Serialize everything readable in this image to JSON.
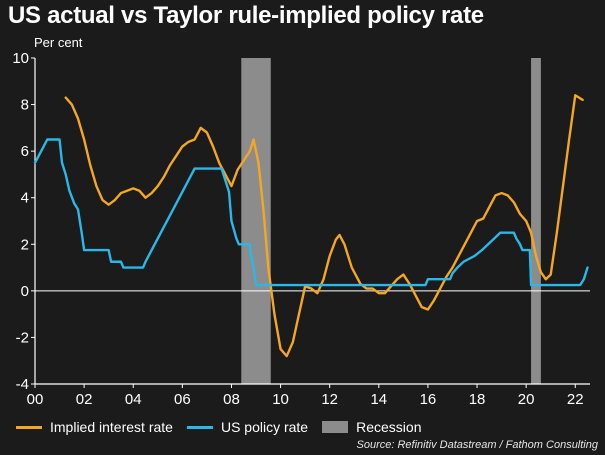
{
  "chart_data": {
    "type": "line",
    "title": "US actual vs Taylor rule-implied policy rate",
    "ylabel": "Per cent",
    "xlabel": "",
    "xlim": [
      2000,
      2022.6
    ],
    "ylim": [
      -4,
      10
    ],
    "y_ticks": [
      10,
      8,
      6,
      4,
      2,
      0,
      -2,
      -4
    ],
    "y_tick_labels": [
      "10",
      "8",
      "6",
      "4",
      "2",
      "0",
      "-2",
      "-4"
    ],
    "x_ticks": [
      2000,
      2002,
      2004,
      2006,
      2008,
      2010,
      2012,
      2014,
      2016,
      2018,
      2020,
      2022
    ],
    "x_tick_labels": [
      "00",
      "02",
      "04",
      "06",
      "08",
      "10",
      "12",
      "14",
      "16",
      "18",
      "20",
      "22"
    ],
    "grid": false,
    "zero_line": true,
    "legend_position": "bottom",
    "recessions": [
      {
        "start": 2008.4,
        "end": 2009.6
      },
      {
        "start": 2020.2,
        "end": 2020.6
      }
    ],
    "recession_label": "Recession",
    "recession_color": "#8c8c8c",
    "series": [
      {
        "name": "Implied interest rate",
        "color": "#f5a623",
        "points": [
          [
            2001.25,
            8.3
          ],
          [
            2001.5,
            8.0
          ],
          [
            2001.75,
            7.4
          ],
          [
            2002.0,
            6.5
          ],
          [
            2002.25,
            5.4
          ],
          [
            2002.5,
            4.5
          ],
          [
            2002.75,
            3.9
          ],
          [
            2003.0,
            3.7
          ],
          [
            2003.25,
            3.9
          ],
          [
            2003.5,
            4.2
          ],
          [
            2003.75,
            4.3
          ],
          [
            2004.0,
            4.4
          ],
          [
            2004.25,
            4.3
          ],
          [
            2004.5,
            4.0
          ],
          [
            2004.75,
            4.2
          ],
          [
            2005.0,
            4.5
          ],
          [
            2005.25,
            4.9
          ],
          [
            2005.5,
            5.4
          ],
          [
            2005.75,
            5.8
          ],
          [
            2006.0,
            6.2
          ],
          [
            2006.25,
            6.4
          ],
          [
            2006.5,
            6.5
          ],
          [
            2006.75,
            7.0
          ],
          [
            2007.0,
            6.8
          ],
          [
            2007.25,
            6.2
          ],
          [
            2007.5,
            5.5
          ],
          [
            2007.75,
            5.0
          ],
          [
            2008.0,
            4.5
          ],
          [
            2008.25,
            5.2
          ],
          [
            2008.5,
            5.6
          ],
          [
            2008.75,
            6.0
          ],
          [
            2008.9,
            6.5
          ],
          [
            2009.1,
            5.5
          ],
          [
            2009.3,
            3.5
          ],
          [
            2009.5,
            1.0
          ],
          [
            2009.75,
            -1.0
          ],
          [
            2010.0,
            -2.5
          ],
          [
            2010.25,
            -2.8
          ],
          [
            2010.5,
            -2.2
          ],
          [
            2010.75,
            -1.0
          ],
          [
            2011.0,
            0.2
          ],
          [
            2011.25,
            0.1
          ],
          [
            2011.5,
            -0.1
          ],
          [
            2011.75,
            0.5
          ],
          [
            2012.0,
            1.5
          ],
          [
            2012.25,
            2.2
          ],
          [
            2012.4,
            2.4
          ],
          [
            2012.6,
            2.0
          ],
          [
            2012.9,
            1.0
          ],
          [
            2013.25,
            0.3
          ],
          [
            2013.5,
            0.1
          ],
          [
            2013.75,
            0.1
          ],
          [
            2014.0,
            -0.1
          ],
          [
            2014.25,
            -0.1
          ],
          [
            2014.5,
            0.2
          ],
          [
            2014.75,
            0.5
          ],
          [
            2015.0,
            0.7
          ],
          [
            2015.25,
            0.3
          ],
          [
            2015.5,
            -0.2
          ],
          [
            2015.75,
            -0.7
          ],
          [
            2016.0,
            -0.8
          ],
          [
            2016.25,
            -0.4
          ],
          [
            2016.5,
            0.1
          ],
          [
            2016.75,
            0.6
          ],
          [
            2017.0,
            1.0
          ],
          [
            2017.25,
            1.5
          ],
          [
            2017.5,
            2.0
          ],
          [
            2017.75,
            2.5
          ],
          [
            2018.0,
            3.0
          ],
          [
            2018.25,
            3.1
          ],
          [
            2018.5,
            3.6
          ],
          [
            2018.75,
            4.1
          ],
          [
            2019.0,
            4.2
          ],
          [
            2019.25,
            4.1
          ],
          [
            2019.5,
            3.8
          ],
          [
            2019.75,
            3.3
          ],
          [
            2020.0,
            3.0
          ],
          [
            2020.2,
            2.5
          ],
          [
            2020.4,
            1.5
          ],
          [
            2020.6,
            0.8
          ],
          [
            2020.8,
            0.5
          ],
          [
            2021.0,
            0.7
          ],
          [
            2021.25,
            2.5
          ],
          [
            2021.5,
            4.5
          ],
          [
            2021.75,
            6.5
          ],
          [
            2022.0,
            8.4
          ],
          [
            2022.3,
            8.2
          ]
        ]
      },
      {
        "name": "US policy rate",
        "color": "#2ab7ea",
        "points": [
          [
            2000.0,
            5.5
          ],
          [
            2000.25,
            6.0
          ],
          [
            2000.5,
            6.5
          ],
          [
            2000.75,
            6.5
          ],
          [
            2001.0,
            6.5
          ],
          [
            2001.1,
            5.5
          ],
          [
            2001.25,
            5.0
          ],
          [
            2001.4,
            4.3
          ],
          [
            2001.6,
            3.75
          ],
          [
            2001.75,
            3.5
          ],
          [
            2001.9,
            2.5
          ],
          [
            2002.0,
            1.75
          ],
          [
            2002.75,
            1.75
          ],
          [
            2003.0,
            1.75
          ],
          [
            2003.1,
            1.25
          ],
          [
            2003.5,
            1.25
          ],
          [
            2003.6,
            1.0
          ],
          [
            2004.4,
            1.0
          ],
          [
            2004.5,
            1.25
          ],
          [
            2004.75,
            1.75
          ],
          [
            2005.0,
            2.25
          ],
          [
            2005.25,
            2.75
          ],
          [
            2005.5,
            3.25
          ],
          [
            2005.75,
            3.75
          ],
          [
            2006.0,
            4.25
          ],
          [
            2006.25,
            4.75
          ],
          [
            2006.5,
            5.25
          ],
          [
            2007.6,
            5.25
          ],
          [
            2007.75,
            4.75
          ],
          [
            2007.9,
            4.25
          ],
          [
            2008.0,
            3.0
          ],
          [
            2008.2,
            2.25
          ],
          [
            2008.3,
            2.0
          ],
          [
            2008.75,
            2.0
          ],
          [
            2008.8,
            1.5
          ],
          [
            2008.9,
            1.0
          ],
          [
            2009.0,
            0.25
          ],
          [
            2015.9,
            0.25
          ],
          [
            2016.0,
            0.5
          ],
          [
            2016.9,
            0.5
          ],
          [
            2017.0,
            0.75
          ],
          [
            2017.2,
            1.0
          ],
          [
            2017.45,
            1.25
          ],
          [
            2017.9,
            1.5
          ],
          [
            2018.2,
            1.75
          ],
          [
            2018.45,
            2.0
          ],
          [
            2018.7,
            2.25
          ],
          [
            2018.95,
            2.5
          ],
          [
            2019.5,
            2.5
          ],
          [
            2019.6,
            2.25
          ],
          [
            2019.75,
            2.0
          ],
          [
            2019.85,
            1.75
          ],
          [
            2020.15,
            1.75
          ],
          [
            2020.2,
            0.25
          ],
          [
            2022.2,
            0.25
          ],
          [
            2022.35,
            0.5
          ],
          [
            2022.5,
            1.0
          ]
        ]
      }
    ]
  },
  "legend": {
    "items": [
      {
        "label": "Implied interest rate",
        "color": "#f5a623"
      },
      {
        "label": "US policy rate",
        "color": "#2ab7ea"
      },
      {
        "label": "Recession",
        "color": "#8c8c8c"
      }
    ]
  },
  "source": "Source: Refinitiv Datastream / Fathom Consulting"
}
